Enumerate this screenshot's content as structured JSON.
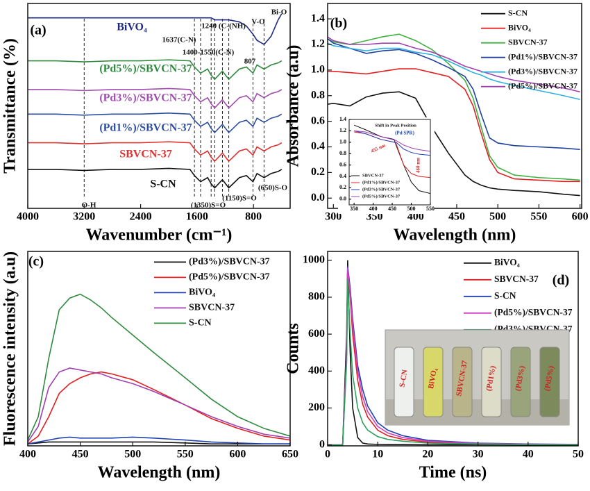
{
  "chart_data": [
    {
      "type": "line",
      "panel_label": "(a)",
      "x_label": "Wavenumber (cm⁻¹)",
      "y_label": "Transmittance (%)",
      "xlim": [
        4000,
        280
      ],
      "ylim": [
        0,
        100
      ],
      "xticks": [
        4000,
        3200,
        2400,
        1600,
        800
      ],
      "legend": "inline",
      "x": [
        4000,
        3600,
        3200,
        2800,
        2400,
        2000,
        1700,
        1637,
        1550,
        1450,
        1400,
        1350,
        1240,
        1150,
        1000,
        900,
        807,
        750,
        650,
        550,
        450,
        400
      ],
      "series": [
        {
          "name": "BiVO₄",
          "color": "#1f2a80",
          "values": [
            93,
            93,
            93,
            93,
            93,
            93,
            93,
            93,
            93,
            93,
            93,
            92,
            92,
            92,
            91,
            89,
            85,
            82,
            80,
            84,
            92,
            95
          ]
        },
        {
          "name": "(Pd5%)/SBVCN-37",
          "color": "#2e8b3e",
          "values": [
            72,
            72,
            71.5,
            72,
            72,
            72.5,
            72,
            69,
            66,
            68,
            65,
            63,
            67,
            63,
            68,
            69,
            66,
            70,
            68,
            70,
            71,
            72
          ]
        },
        {
          "name": "(Pd3%)/SBVCN-37",
          "color": "#a24bb0",
          "values": [
            58,
            58,
            57.5,
            58,
            58,
            58.5,
            58,
            55,
            52,
            54,
            51,
            49,
            53,
            49,
            54,
            55,
            52,
            56,
            54,
            56,
            57,
            58
          ]
        },
        {
          "name": "(Pd1%)/SBVCN-37",
          "color": "#2c4ea0",
          "values": [
            46,
            46,
            45.5,
            46,
            46,
            46.5,
            46,
            43,
            40,
            42,
            39,
            37,
            41,
            37,
            42,
            43,
            40,
            44,
            42,
            44,
            45,
            46
          ]
        },
        {
          "name": "SBVCN-37",
          "color": "#e03030",
          "values": [
            32,
            32,
            31.5,
            32,
            32,
            32.5,
            32,
            29,
            26,
            28,
            25,
            23,
            27,
            23,
            28,
            29,
            26,
            30,
            28,
            30,
            31,
            32
          ]
        },
        {
          "name": "S-CN",
          "color": "#111111",
          "values": [
            19,
            19,
            18.5,
            19,
            19,
            19.5,
            19,
            16,
            13,
            15,
            12,
            10,
            14,
            10,
            15,
            16,
            13,
            17,
            15,
            17,
            18,
            19
          ]
        }
      ],
      "dashed_lines": [
        3200,
        1637,
        1550,
        1400,
        1350,
        1240,
        1150,
        807,
        650
      ],
      "annotations": [
        "O-H",
        "1637(C-N)",
        "1400-1550(C-N)",
        "1240 (C-(NH)",
        "807",
        "V-O",
        "Bi-O",
        "(1350)S=O",
        "(1150)S=O",
        "(650)S-O"
      ]
    },
    {
      "type": "line",
      "panel_label": "(b)",
      "x_label": "Wavelength (nm)",
      "y_label": "Absorbance (a.u)",
      "xlim": [
        293,
        602
      ],
      "ylim": [
        -0.08,
        1.52
      ],
      "xticks": [
        300,
        350,
        400,
        450,
        500,
        550,
        600
      ],
      "yticks": [
        {
          "value": 0,
          "label": "0.0"
        },
        0.2,
        0.4,
        0.6,
        0.8,
        {
          "value": 1,
          "label": "1.0"
        },
        1.2,
        1.4
      ],
      "legend": "upper right",
      "x": [
        290,
        300,
        320,
        340,
        360,
        380,
        400,
        420,
        440,
        460,
        470,
        480,
        490,
        500,
        520,
        550,
        580,
        600
      ],
      "series": [
        {
          "name": "S-CN",
          "color": "#111111",
          "values": [
            0.73,
            0.74,
            0.72,
            0.79,
            0.82,
            0.83,
            0.78,
            0.55,
            0.35,
            0.18,
            0.13,
            0.1,
            0.08,
            0.07,
            0.06,
            0.05,
            0.03,
            0.02
          ]
        },
        {
          "name": "BiVO₄",
          "color": "#e02020",
          "values": [
            0.99,
            0.99,
            0.98,
            0.97,
            0.99,
            1.01,
            1.01,
            0.98,
            0.95,
            0.85,
            0.72,
            0.5,
            0.3,
            0.2,
            0.15,
            0.14,
            0.13,
            0.13
          ]
        },
        {
          "name": "SBVCN-37",
          "color": "#40b040",
          "values": [
            1.25,
            1.22,
            1.2,
            1.23,
            1.26,
            1.28,
            1.23,
            1.16,
            1.05,
            0.92,
            0.78,
            0.55,
            0.33,
            0.24,
            0.18,
            0.16,
            0.15,
            0.14
          ]
        },
        {
          "name": "(Pd1%)/SBVCN-37",
          "color": "#2040a0",
          "values": [
            1.26,
            1.21,
            1.17,
            1.13,
            1.15,
            1.16,
            1.13,
            1.08,
            1.02,
            0.95,
            0.85,
            0.65,
            0.47,
            0.43,
            0.41,
            0.4,
            0.39,
            0.38
          ]
        },
        {
          "name": "(Pd3%)/SBVCN-37",
          "color": "#30b0e0",
          "values": [
            1.22,
            1.19,
            1.17,
            1.15,
            1.17,
            1.17,
            1.14,
            1.12,
            1.07,
            1.01,
            0.98,
            0.96,
            0.93,
            0.91,
            0.88,
            0.84,
            0.8,
            0.77
          ]
        },
        {
          "name": "(Pd5%)/SBVCN-37",
          "color": "#a040b0",
          "values": [
            1.27,
            1.23,
            1.2,
            1.2,
            1.21,
            1.21,
            1.17,
            1.14,
            1.09,
            1.03,
            1.01,
            0.99,
            0.97,
            0.95,
            0.92,
            0.89,
            0.86,
            0.83
          ]
        }
      ]
    },
    {
      "type": "line",
      "xlim": [
        337,
        550
      ],
      "ylim": [
        -0.1,
        1.4
      ],
      "xticks": [
        350,
        400,
        450,
        500,
        550
      ],
      "yticks": [
        {
          "value": 0,
          "label": "0.0"
        },
        0.2,
        0.4,
        0.6,
        0.8,
        {
          "value": 1,
          "label": "1.0"
        },
        1.2,
        1.4
      ],
      "legend": "lower left",
      "x": [
        350,
        380,
        420,
        455,
        460,
        480,
        500,
        520,
        550
      ],
      "series": [
        {
          "name": "SBVCN-37",
          "color": "#111111",
          "values": [
            1.3,
            1.22,
            1.1,
            1.05,
            0.95,
            0.6,
            0.3,
            0.15,
            0.1
          ]
        },
        {
          "name": "(Pd1%)/SBVCN-37",
          "color": "#e02020",
          "values": [
            1.18,
            1.15,
            1.05,
            1.0,
            0.98,
            0.6,
            0.45,
            0.4,
            0.38
          ]
        },
        {
          "name": "(Pd3%)/SBVCN-37",
          "color": "#2040c0",
          "values": [
            1.2,
            1.15,
            1.05,
            1.0,
            1.0,
            0.88,
            0.82,
            0.79,
            0.77
          ]
        },
        {
          "name": "(Pd5%)/SBVCN-37",
          "color": "#a040b0",
          "values": [
            1.2,
            1.18,
            1.1,
            1.04,
            1.03,
            0.95,
            0.9,
            0.87,
            0.84
          ]
        }
      ],
      "annotations": [
        "Shift in Peak Position",
        "(Pd SPR)",
        "455 nm",
        "460 nm"
      ]
    },
    {
      "type": "line",
      "panel_label": "(c)",
      "x_label": "Wavelength (nm)",
      "y_label": "Fluorescence intensity (a.u)",
      "xlim": [
        400,
        650
      ],
      "ylim": [
        0,
        100
      ],
      "xticks": [
        400,
        450,
        500,
        550,
        600,
        650
      ],
      "legend": "upper right",
      "x": [
        400,
        410,
        420,
        430,
        440,
        450,
        460,
        470,
        480,
        500,
        520,
        550,
        575,
        600,
        625,
        650
      ],
      "series": [
        {
          "name": "(Pd3%)/SBVCN-37",
          "color": "#111111",
          "values": [
            1,
            1.5,
            2,
            2,
            2,
            2,
            2,
            2,
            2,
            2,
            2,
            1.5,
            1,
            1,
            1,
            1
          ]
        },
        {
          "name": "(Pd5%)/SBVCN-37",
          "color": "#e02020",
          "values": [
            1,
            5,
            15,
            27,
            32,
            35,
            37,
            38,
            37,
            34,
            29,
            21,
            14,
            9,
            5,
            3
          ]
        },
        {
          "name": "BiVO₄",
          "color": "#2040b0",
          "values": [
            1,
            2,
            3,
            4,
            4.5,
            4,
            4,
            4,
            4,
            4.5,
            4,
            3,
            2,
            1.5,
            1,
            1
          ]
        },
        {
          "name": "SBVCN-37",
          "color": "#a040b0",
          "values": [
            2,
            10,
            30,
            38,
            40,
            39,
            38,
            37,
            35,
            32,
            28,
            21,
            15,
            10,
            6,
            4
          ]
        },
        {
          "name": "S-CN",
          "color": "#2e8b3e",
          "values": [
            3,
            15,
            45,
            70,
            76,
            78,
            75,
            71,
            66,
            57,
            48,
            35,
            24,
            15,
            9,
            5
          ]
        }
      ]
    },
    {
      "type": "line",
      "panel_label": "(d)",
      "x_label": "Time (ns)",
      "y_label": "Counts",
      "xlim": [
        0,
        50
      ],
      "ylim": [
        -5,
        1048
      ],
      "xticks": [
        0,
        10,
        20,
        30,
        40,
        50
      ],
      "yticks": [
        0,
        200,
        400,
        600,
        800,
        1000
      ],
      "legend": "upper right",
      "x": [
        0,
        3,
        3.8,
        4,
        4.5,
        5,
        6,
        7,
        8,
        10,
        12,
        15,
        20,
        30,
        40,
        50
      ],
      "series": [
        {
          "name": "BiVO₄",
          "color": "#111111",
          "values": [
            0,
            0,
            600,
            1000,
            500,
            200,
            40,
            10,
            5,
            3,
            2,
            2,
            1,
            1,
            0,
            0
          ]
        },
        {
          "name": "SBVCN-37",
          "color": "#e02020",
          "values": [
            0,
            0,
            500,
            950,
            800,
            600,
            350,
            220,
            150,
            80,
            50,
            30,
            15,
            5,
            3,
            2
          ]
        },
        {
          "name": "S-CN",
          "color": "#2040b0",
          "values": [
            0,
            0,
            500,
            970,
            850,
            680,
            430,
            300,
            210,
            120,
            80,
            50,
            25,
            10,
            5,
            3
          ]
        },
        {
          "name": "(Pd5%)/SBVCN-37",
          "color": "#d040c0",
          "values": [
            0,
            0,
            500,
            960,
            820,
            650,
            400,
            260,
            180,
            100,
            65,
            40,
            20,
            8,
            4,
            2
          ]
        },
        {
          "name": "(Pd3%)/SBVCN-37",
          "color": "#2ea060",
          "values": [
            0,
            0,
            450,
            900,
            600,
            380,
            200,
            120,
            80,
            45,
            30,
            20,
            10,
            4,
            2,
            1
          ]
        }
      ],
      "photo_labels": [
        "S-CN",
        "BiVO₄",
        "SBVCN-37",
        "(Pd1%)",
        "(Pd3%)",
        "(Pd5%)"
      ]
    }
  ]
}
